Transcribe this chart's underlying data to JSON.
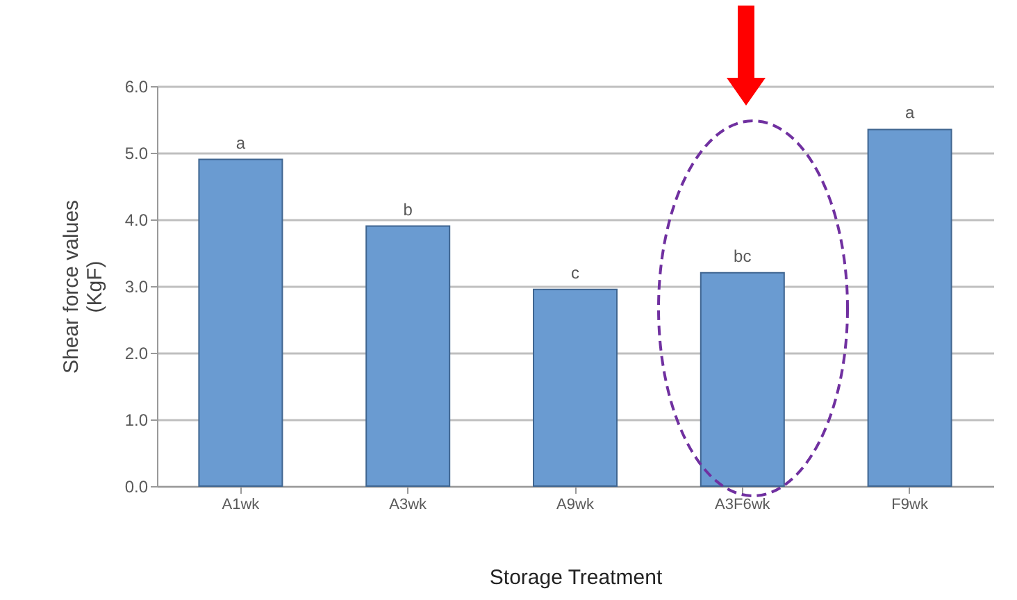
{
  "chart_data": {
    "type": "bar",
    "xlabel": "Storage Treatment",
    "ylabel": "Shear force values\n(KgF)",
    "categories": [
      "A1wk",
      "A3wk",
      "A9wk",
      "A3F6wk",
      "F9wk"
    ],
    "values": [
      4.9,
      3.9,
      2.95,
      3.2,
      5.35
    ],
    "color": "#6a9bd1",
    "ylim": [
      0,
      6
    ],
    "yticks": [
      {
        "value": 0,
        "label": "0.0"
      },
      {
        "value": 1,
        "label": "1.0"
      },
      {
        "value": 2,
        "label": "2.0"
      },
      {
        "value": 3,
        "label": "3.0"
      },
      {
        "value": 4,
        "label": "4.0"
      },
      {
        "value": 5,
        "label": "5.0"
      },
      {
        "value": 6,
        "label": "6.0"
      }
    ],
    "grid": true,
    "annotations": [
      {
        "text": "a",
        "x": "A1wk",
        "y": 4.9
      },
      {
        "text": "b",
        "x": "A3wk",
        "y": 3.9
      },
      {
        "text": "c",
        "x": "A9wk",
        "y": 2.95
      },
      {
        "text": "bc",
        "x": "A3F6wk",
        "y": 3.2
      },
      {
        "text": "a",
        "x": "F9wk",
        "y": 5.35
      }
    ]
  }
}
